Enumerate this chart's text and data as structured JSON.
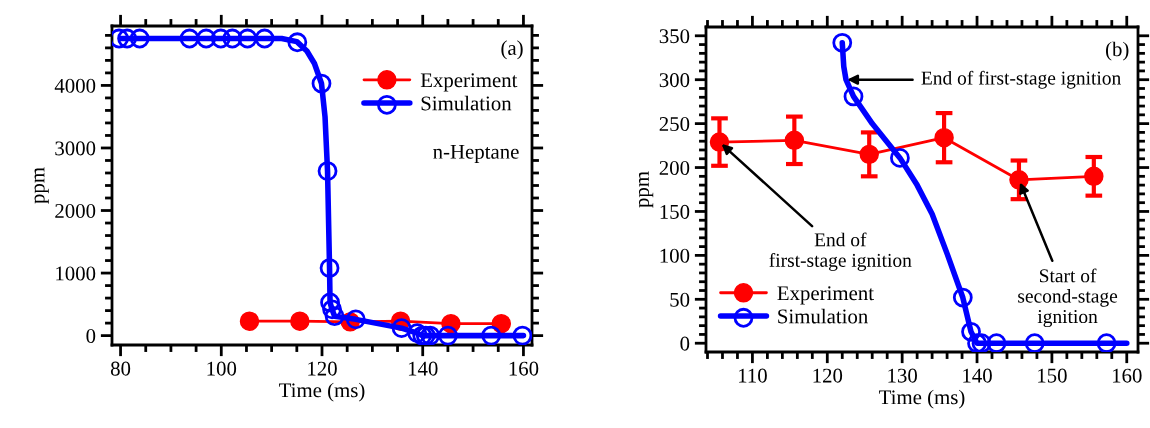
{
  "chart_data": [
    {
      "type": "line",
      "xlabel": "Time (ms)",
      "ylabel": "ppm",
      "xlim": [
        78.3,
        161.7
      ],
      "ylim": [
        -150,
        4950
      ],
      "xticks": [
        80,
        {
          "value": 85,
          "label": null
        },
        {
          "value": 90,
          "label": null
        },
        {
          "value": 95,
          "label": null
        },
        100,
        {
          "value": 105,
          "label": null
        },
        {
          "value": 110,
          "label": null
        },
        {
          "value": 115,
          "label": null
        },
        120,
        {
          "value": 125,
          "label": null
        },
        {
          "value": 130,
          "label": null
        },
        {
          "value": 135,
          "label": null
        },
        140,
        {
          "value": 145,
          "label": null
        },
        {
          "value": 150,
          "label": null
        },
        {
          "value": 155,
          "label": null
        },
        160
      ],
      "yticks": [
        0,
        {
          "value": 200,
          "label": null
        },
        {
          "value": 400,
          "label": null
        },
        {
          "value": 600,
          "label": null
        },
        {
          "value": 800,
          "label": null
        },
        1000,
        {
          "value": 1200,
          "label": null
        },
        {
          "value": 1400,
          "label": null
        },
        {
          "value": 1600,
          "label": null
        },
        {
          "value": 1800,
          "label": null
        },
        2000,
        {
          "value": 2200,
          "label": null
        },
        {
          "value": 2400,
          "label": null
        },
        {
          "value": 2600,
          "label": null
        },
        {
          "value": 2800,
          "label": null
        },
        3000,
        {
          "value": 3200,
          "label": null
        },
        {
          "value": 3400,
          "label": null
        },
        {
          "value": 3600,
          "label": null
        },
        {
          "value": 3800,
          "label": null
        },
        4000,
        {
          "value": 4200,
          "label": null
        },
        {
          "value": 4400,
          "label": null
        },
        {
          "value": 4600,
          "label": null
        },
        {
          "value": 4800,
          "label": null
        }
      ],
      "grid": false,
      "legend": "top right",
      "annotations": [
        "(a)",
        "n-Heptane"
      ],
      "series": [
        {
          "name": "Experiment",
          "color": "#ff0000",
          "marker": "circle",
          "line_style": "solid",
          "x": [
            105.6,
            115.6,
            125.6,
            135.6,
            145.6,
            155.6
          ],
          "values": [
            230,
            230,
            220,
            230,
            190,
            190
          ]
        },
        {
          "color": "#0000ff",
          "marker": "none",
          "line_style": "solid",
          "x": [
            80,
            112,
            115,
            117,
            118.5,
            119.9,
            120.6,
            121.1,
            121.5,
            121.6,
            122,
            122.5,
            126.7,
            135.8,
            138.9,
            139.9,
            160
          ],
          "values": [
            4750,
            4750,
            4700,
            4550,
            4350,
            4030,
            3500,
            2630,
            1080,
            530,
            420,
            310,
            260,
            120,
            40,
            0,
            0
          ]
        },
        {
          "name": "Simulation",
          "color": "#0000ff",
          "type": "scatter",
          "marker": "circle",
          "x": [
            79.7,
            81.3,
            83.8,
            93.7,
            97.0,
            99.9,
            102.2,
            105.2,
            108.6,
            115.1,
            119.9,
            121.1,
            121.5,
            121.6,
            122.0,
            122.5,
            126.7,
            135.8,
            138.9,
            139.9,
            140.6,
            141.5,
            145.0,
            153.6,
            159.8
          ],
          "values": [
            4750,
            4750,
            4750,
            4750,
            4750,
            4750,
            4750,
            4750,
            4750,
            4690,
            4030,
            2630,
            1080,
            530,
            420,
            310,
            260,
            120,
            40,
            0,
            0,
            0,
            0,
            0,
            0
          ]
        }
      ]
    },
    {
      "type": "line",
      "xlabel": "Time (ms)",
      "ylabel": "ppm",
      "xlim": [
        103.8,
        161.5
      ],
      "ylim": [
        -10,
        360
      ],
      "xticks": [
        {
          "value": 104,
          "label": null
        },
        {
          "value": 106,
          "label": null
        },
        {
          "value": 108,
          "label": null
        },
        110,
        {
          "value": 112,
          "label": null
        },
        {
          "value": 114,
          "label": null
        },
        {
          "value": 116,
          "label": null
        },
        {
          "value": 118,
          "label": null
        },
        120,
        {
          "value": 122,
          "label": null
        },
        {
          "value": 124,
          "label": null
        },
        {
          "value": 126,
          "label": null
        },
        {
          "value": 128,
          "label": null
        },
        130,
        {
          "value": 132,
          "label": null
        },
        {
          "value": 134,
          "label": null
        },
        {
          "value": 136,
          "label": null
        },
        {
          "value": 138,
          "label": null
        },
        140,
        {
          "value": 142,
          "label": null
        },
        {
          "value": 144,
          "label": null
        },
        {
          "value": 146,
          "label": null
        },
        {
          "value": 148,
          "label": null
        },
        150,
        {
          "value": 152,
          "label": null
        },
        {
          "value": 154,
          "label": null
        },
        {
          "value": 156,
          "label": null
        },
        {
          "value": 158,
          "label": null
        },
        160
      ],
      "yticks": [
        0,
        {
          "value": 10,
          "label": null
        },
        {
          "value": 20,
          "label": null
        },
        {
          "value": 30,
          "label": null
        },
        {
          "value": 40,
          "label": null
        },
        50,
        {
          "value": 60,
          "label": null
        },
        {
          "value": 70,
          "label": null
        },
        {
          "value": 80,
          "label": null
        },
        {
          "value": 90,
          "label": null
        },
        100,
        {
          "value": 110,
          "label": null
        },
        {
          "value": 120,
          "label": null
        },
        {
          "value": 130,
          "label": null
        },
        {
          "value": 140,
          "label": null
        },
        150,
        {
          "value": 160,
          "label": null
        },
        {
          "value": 170,
          "label": null
        },
        {
          "value": 180,
          "label": null
        },
        {
          "value": 190,
          "label": null
        },
        200,
        {
          "value": 210,
          "label": null
        },
        {
          "value": 220,
          "label": null
        },
        {
          "value": 230,
          "label": null
        },
        {
          "value": 240,
          "label": null
        },
        250,
        {
          "value": 260,
          "label": null
        },
        {
          "value": 270,
          "label": null
        },
        {
          "value": 280,
          "label": null
        },
        {
          "value": 290,
          "label": null
        },
        300,
        {
          "value": 310,
          "label": null
        },
        {
          "value": 320,
          "label": null
        },
        {
          "value": 330,
          "label": null
        },
        {
          "value": 340,
          "label": null
        },
        350
      ],
      "grid": false,
      "legend": "bottom left",
      "annotations": [
        "(b)",
        {
          "text": "End of first-stage ignition",
          "x": 122.3,
          "y": 300
        },
        {
          "text": "End of\nfirst-stage ignition",
          "x": 105.6,
          "y": 229
        },
        {
          "text": "Start of\nsecond-stage\nignition",
          "x": 145.6,
          "y": 186
        }
      ],
      "series": [
        {
          "name": "Experiment",
          "color": "#ff0000",
          "marker": "circle",
          "line_style": "solid",
          "x": [
            105.6,
            115.6,
            125.6,
            135.6,
            145.6,
            155.6
          ],
          "values": [
            229,
            231,
            215,
            234,
            186,
            190
          ],
          "errors": [
            27,
            27,
            25,
            28,
            22,
            22
          ]
        },
        {
          "color": "#0000ff",
          "marker": "none",
          "line_style": "solid",
          "x": [
            122,
            122.2,
            122.5,
            123.5,
            126,
            129.7,
            132,
            134,
            136,
            138.1,
            139.2,
            140,
            160
          ],
          "values": [
            342,
            315,
            300,
            281,
            250,
            211,
            180,
            147,
            102,
            52,
            13,
            0,
            0
          ]
        },
        {
          "name": "Simulation",
          "color": "#0000ff",
          "type": "scatter",
          "marker": "circle",
          "x": [
            122.0,
            123.5,
            129.7,
            138.1,
            139.2,
            140.0,
            140.6,
            142.6,
            147.7,
            157.3
          ],
          "values": [
            342,
            281,
            211,
            52,
            13,
            0,
            0,
            0,
            0,
            0
          ]
        }
      ]
    }
  ]
}
